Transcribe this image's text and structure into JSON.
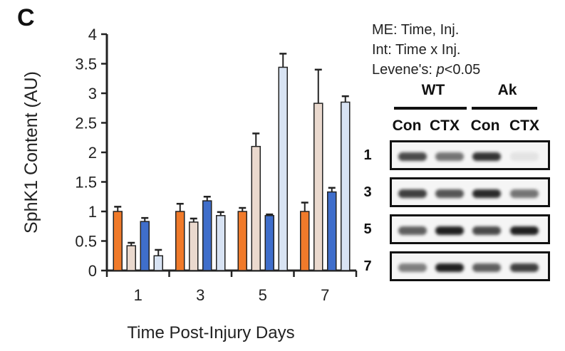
{
  "panel_letter": "C",
  "stats": {
    "line1": "ME: Time, Inj.",
    "line2": "Int: Time x Inj.",
    "line3_prefix": "Levene's: ",
    "line3_p": "p",
    "line3_suffix": "<0.05"
  },
  "blot": {
    "groups": [
      "WT",
      "Ak"
    ],
    "lanes": [
      "Con",
      "CTX",
      "Con",
      "CTX"
    ],
    "rows": [
      {
        "label": "1",
        "intensities": [
          0.8,
          0.6,
          0.9,
          0.08
        ]
      },
      {
        "label": "3",
        "intensities": [
          0.85,
          0.75,
          0.95,
          0.6
        ]
      },
      {
        "label": "5",
        "intensities": [
          0.7,
          1.0,
          0.8,
          1.0
        ]
      },
      {
        "label": "7",
        "intensities": [
          0.55,
          1.0,
          0.7,
          0.85
        ]
      }
    ]
  },
  "colors": {
    "bar_outline": "#222222",
    "series": [
      "#f07a2a",
      "#ead9ce",
      "#3f6ecb",
      "#d8e3f3"
    ]
  },
  "chart_data": {
    "type": "bar",
    "xlabel": "Time Post-Injury Days",
    "ylabel": "SphK1 Content (AU)",
    "categories": [
      "1",
      "3",
      "5",
      "7"
    ],
    "ylim": [
      0,
      4
    ],
    "yticks": [
      "0",
      "0.5",
      "1",
      "1.5",
      "2",
      "2.5",
      "3",
      "3.5",
      "4"
    ],
    "series": [
      {
        "values": [
          1.0,
          1.0,
          1.0,
          1.0
        ],
        "errors": [
          0.08,
          0.13,
          0.06,
          0.15
        ]
      },
      {
        "values": [
          0.42,
          0.82,
          2.1,
          2.83
        ],
        "errors": [
          0.05,
          0.06,
          0.22,
          0.57
        ]
      },
      {
        "values": [
          0.83,
          1.18,
          0.93,
          1.33
        ],
        "errors": [
          0.06,
          0.07,
          0.02,
          0.07
        ]
      },
      {
        "values": [
          0.25,
          0.93,
          3.44,
          2.85
        ],
        "errors": [
          0.1,
          0.06,
          0.23,
          0.1
        ]
      }
    ],
    "grid": false
  }
}
